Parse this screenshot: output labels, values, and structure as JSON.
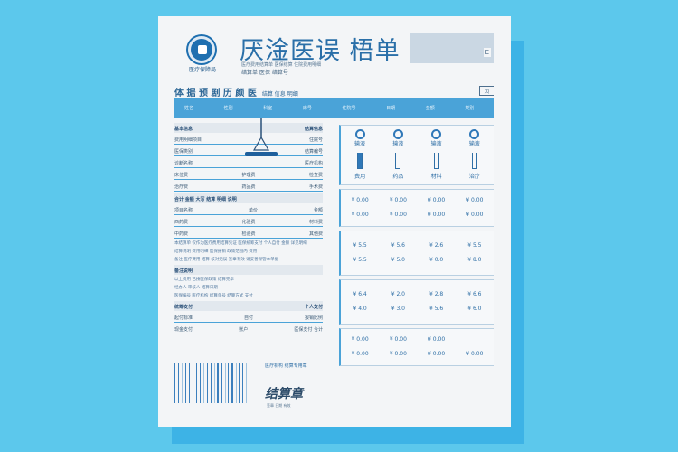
{
  "header": {
    "logo_caption": "医疗保障局",
    "title": "厌淦医误 梧单",
    "subtitle_small": "医疗费用结算单 医保结算 住院费用明细",
    "subtitle": "结算单 医保 结算号",
    "box_label": "E"
  },
  "section": {
    "title": "体 据 预 剧 历 颜 医",
    "sub": "结算 信息 明细",
    "tag": "页"
  },
  "band": [
    "姓名 ——",
    "性别 ——",
    "科室 ——",
    "床号 ——",
    "住院号 ——",
    "日期 ——",
    "金额 ——",
    "类别 ——"
  ],
  "left_rows": [
    [
      "基本信息",
      "",
      "结算信息"
    ],
    [
      "费用明细项目",
      "",
      "住院号"
    ],
    [
      "医保类别",
      "",
      "结算编号"
    ],
    [
      "诊断名称",
      "",
      "医疗机构"
    ],
    [
      "床位费",
      "护理费",
      "检查费"
    ],
    [
      "治疗费",
      "药品费",
      "手术费"
    ],
    [
      "合计 金额 大写 结算 明细 说明",
      "",
      ""
    ],
    [
      "项目名称",
      "单价",
      "金额"
    ],
    [
      "西药费",
      "化验费",
      "材料费"
    ],
    [
      "中药费",
      "检验费",
      "其他费"
    ],
    [
      "统筹支付",
      "",
      "个人支付"
    ],
    [
      "起付标准",
      "自付",
      "报销比例"
    ],
    [
      "现金支付",
      "账户",
      "医保支付 合计"
    ]
  ],
  "paragraphs": [
    "本结算单 仅作为医疗费用结算凭证 医保统筹支付 个人自付 金额 详见明细",
    "结算说明 费用明细 医保报销 政策范围内 费用",
    "备注 医疗费用 结算 核对无误 签章有效 请妥善保管本单据",
    "以上费用 已按医保政策 结算完毕",
    "经办人 审核人 结算日期",
    "医保编号 医疗机构 结算单号 结算方式 支付"
  ],
  "notes_title": "备注说明",
  "right_table": {
    "icon_cells": [
      {
        "name": "输液",
        "sub": "费用"
      },
      {
        "name": "输液",
        "sub": "药品"
      },
      {
        "name": "输液",
        "sub": "材料"
      },
      {
        "name": "输液",
        "sub": "治疗"
      }
    ],
    "panel1": [
      "¥ 0.00",
      "¥ 0.00",
      "¥ 0.00",
      "¥ 0.00",
      "¥ 0.00",
      "¥ 0.00",
      "¥ 0.00",
      "¥ 0.00"
    ],
    "panel2": [
      "¥ 5.5",
      "¥ 5.6",
      "¥ 2.6",
      "¥ 5.5",
      "¥ 5.5",
      "¥ 5.0",
      "¥ 0.0",
      "¥ 8.0"
    ],
    "panel3": [
      "¥ 6.4",
      "¥ 2.0",
      "¥ 2.8",
      "¥ 6.6",
      "¥ 4.0",
      "¥ 3.0",
      "¥ 5.6",
      "¥ 6.0"
    ],
    "panel4": [
      "¥ 0.00",
      "¥ 0.00",
      "¥ 0.00",
      "",
      "¥ 0.00",
      "¥ 0.00",
      "¥ 0.00",
      "¥ 0.00"
    ]
  },
  "stamp": {
    "caption": "医疗机构 结算专用章",
    "text": "结算章",
    "sub": "签章 日期 有效"
  },
  "colors": {
    "background": "#5cc8ec",
    "accent": "#4aa3d8",
    "title": "#2a6fa8"
  }
}
